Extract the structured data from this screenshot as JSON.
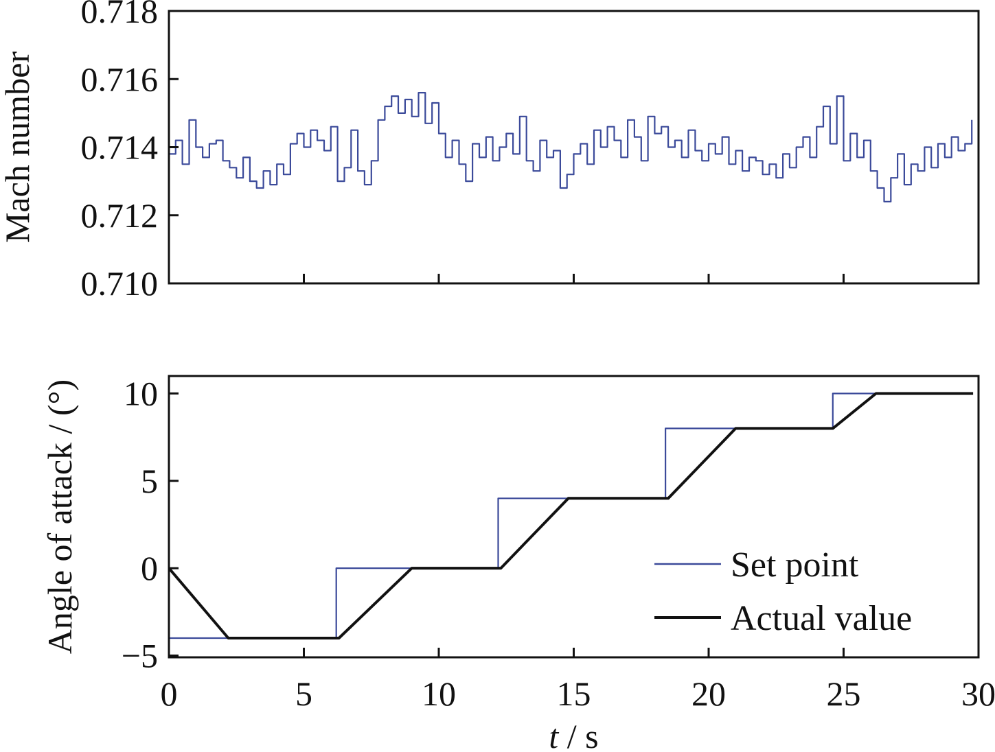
{
  "chart_data": [
    {
      "type": "line",
      "ylabel": "Mach number",
      "xlabel": "",
      "xlim": [
        0,
        30
      ],
      "ylim": [
        0.71,
        0.718
      ],
      "yticks": [
        "0.710",
        "0.712",
        "0.714",
        "0.716",
        "0.718"
      ],
      "ytick_values": [
        0.71,
        0.712,
        0.714,
        0.716,
        0.718
      ],
      "xtick_values": [
        0,
        5,
        10,
        15,
        20,
        25,
        30
      ],
      "grid": false,
      "color": "#3b4a9a",
      "series": [
        {
          "name": "Mach number",
          "x_start": 0,
          "x_step": 0.25,
          "values": [
            0.7138,
            0.7142,
            0.7135,
            0.7148,
            0.714,
            0.7137,
            0.7141,
            0.7142,
            0.7136,
            0.7134,
            0.7131,
            0.7137,
            0.713,
            0.7128,
            0.7133,
            0.7129,
            0.7135,
            0.7132,
            0.7141,
            0.7144,
            0.714,
            0.7145,
            0.7142,
            0.7139,
            0.7146,
            0.713,
            0.7134,
            0.7145,
            0.7133,
            0.7129,
            0.7136,
            0.7148,
            0.7152,
            0.7155,
            0.715,
            0.7154,
            0.7149,
            0.7156,
            0.7147,
            0.7153,
            0.7144,
            0.7137,
            0.7142,
            0.7135,
            0.713,
            0.7141,
            0.7137,
            0.7143,
            0.7136,
            0.714,
            0.7144,
            0.7138,
            0.7149,
            0.7136,
            0.7133,
            0.7142,
            0.7137,
            0.7139,
            0.7128,
            0.7132,
            0.7138,
            0.7141,
            0.7135,
            0.7145,
            0.714,
            0.7146,
            0.7142,
            0.7137,
            0.7148,
            0.7143,
            0.7136,
            0.7149,
            0.7144,
            0.7146,
            0.714,
            0.7142,
            0.7137,
            0.7145,
            0.7139,
            0.7136,
            0.7141,
            0.7138,
            0.7143,
            0.7135,
            0.7139,
            0.7133,
            0.7137,
            0.7136,
            0.7132,
            0.7135,
            0.7131,
            0.7138,
            0.7134,
            0.714,
            0.7143,
            0.7137,
            0.7146,
            0.7152,
            0.7141,
            0.7155,
            0.7136,
            0.7144,
            0.7137,
            0.7142,
            0.7133,
            0.7128,
            0.7124,
            0.7131,
            0.7138,
            0.7129,
            0.7135,
            0.7133,
            0.714,
            0.7134,
            0.7141,
            0.7137,
            0.7143,
            0.7139,
            0.7141,
            0.7148
          ]
        }
      ]
    },
    {
      "type": "line",
      "ylabel": "Angle of attack / (°)",
      "xlabel_italic": "t",
      "xlabel_rest": " / s",
      "xlim": [
        0,
        30
      ],
      "ylim": [
        -5.1,
        11.0
      ],
      "yticks": [
        "−5",
        "0",
        "5",
        "10"
      ],
      "ytick_values": [
        -5,
        0,
        5,
        10
      ],
      "xticks": [
        "0",
        "5",
        "10",
        "15",
        "20",
        "25",
        "30"
      ],
      "xtick_values": [
        0,
        5,
        10,
        15,
        20,
        25,
        30
      ],
      "grid": false,
      "legend_position": "bottom-right",
      "series": [
        {
          "name": "Set point",
          "color": "#3b4a9a",
          "points": [
            [
              0,
              0
            ],
            [
              0,
              -4
            ],
            [
              6.2,
              -4
            ],
            [
              6.2,
              0
            ],
            [
              12.2,
              0
            ],
            [
              12.2,
              4
            ],
            [
              18.4,
              4
            ],
            [
              18.4,
              8
            ],
            [
              24.6,
              8
            ],
            [
              24.6,
              10
            ],
            [
              26.3,
              10
            ]
          ]
        },
        {
          "name": "Actual value",
          "color": "#111111",
          "points": [
            [
              0,
              0
            ],
            [
              2.2,
              -4
            ],
            [
              6.3,
              -4
            ],
            [
              9.0,
              0
            ],
            [
              12.3,
              0
            ],
            [
              14.8,
              4
            ],
            [
              18.5,
              4
            ],
            [
              21.0,
              8
            ],
            [
              24.6,
              8
            ],
            [
              26.2,
              10
            ],
            [
              29.8,
              10
            ]
          ]
        }
      ]
    }
  ]
}
